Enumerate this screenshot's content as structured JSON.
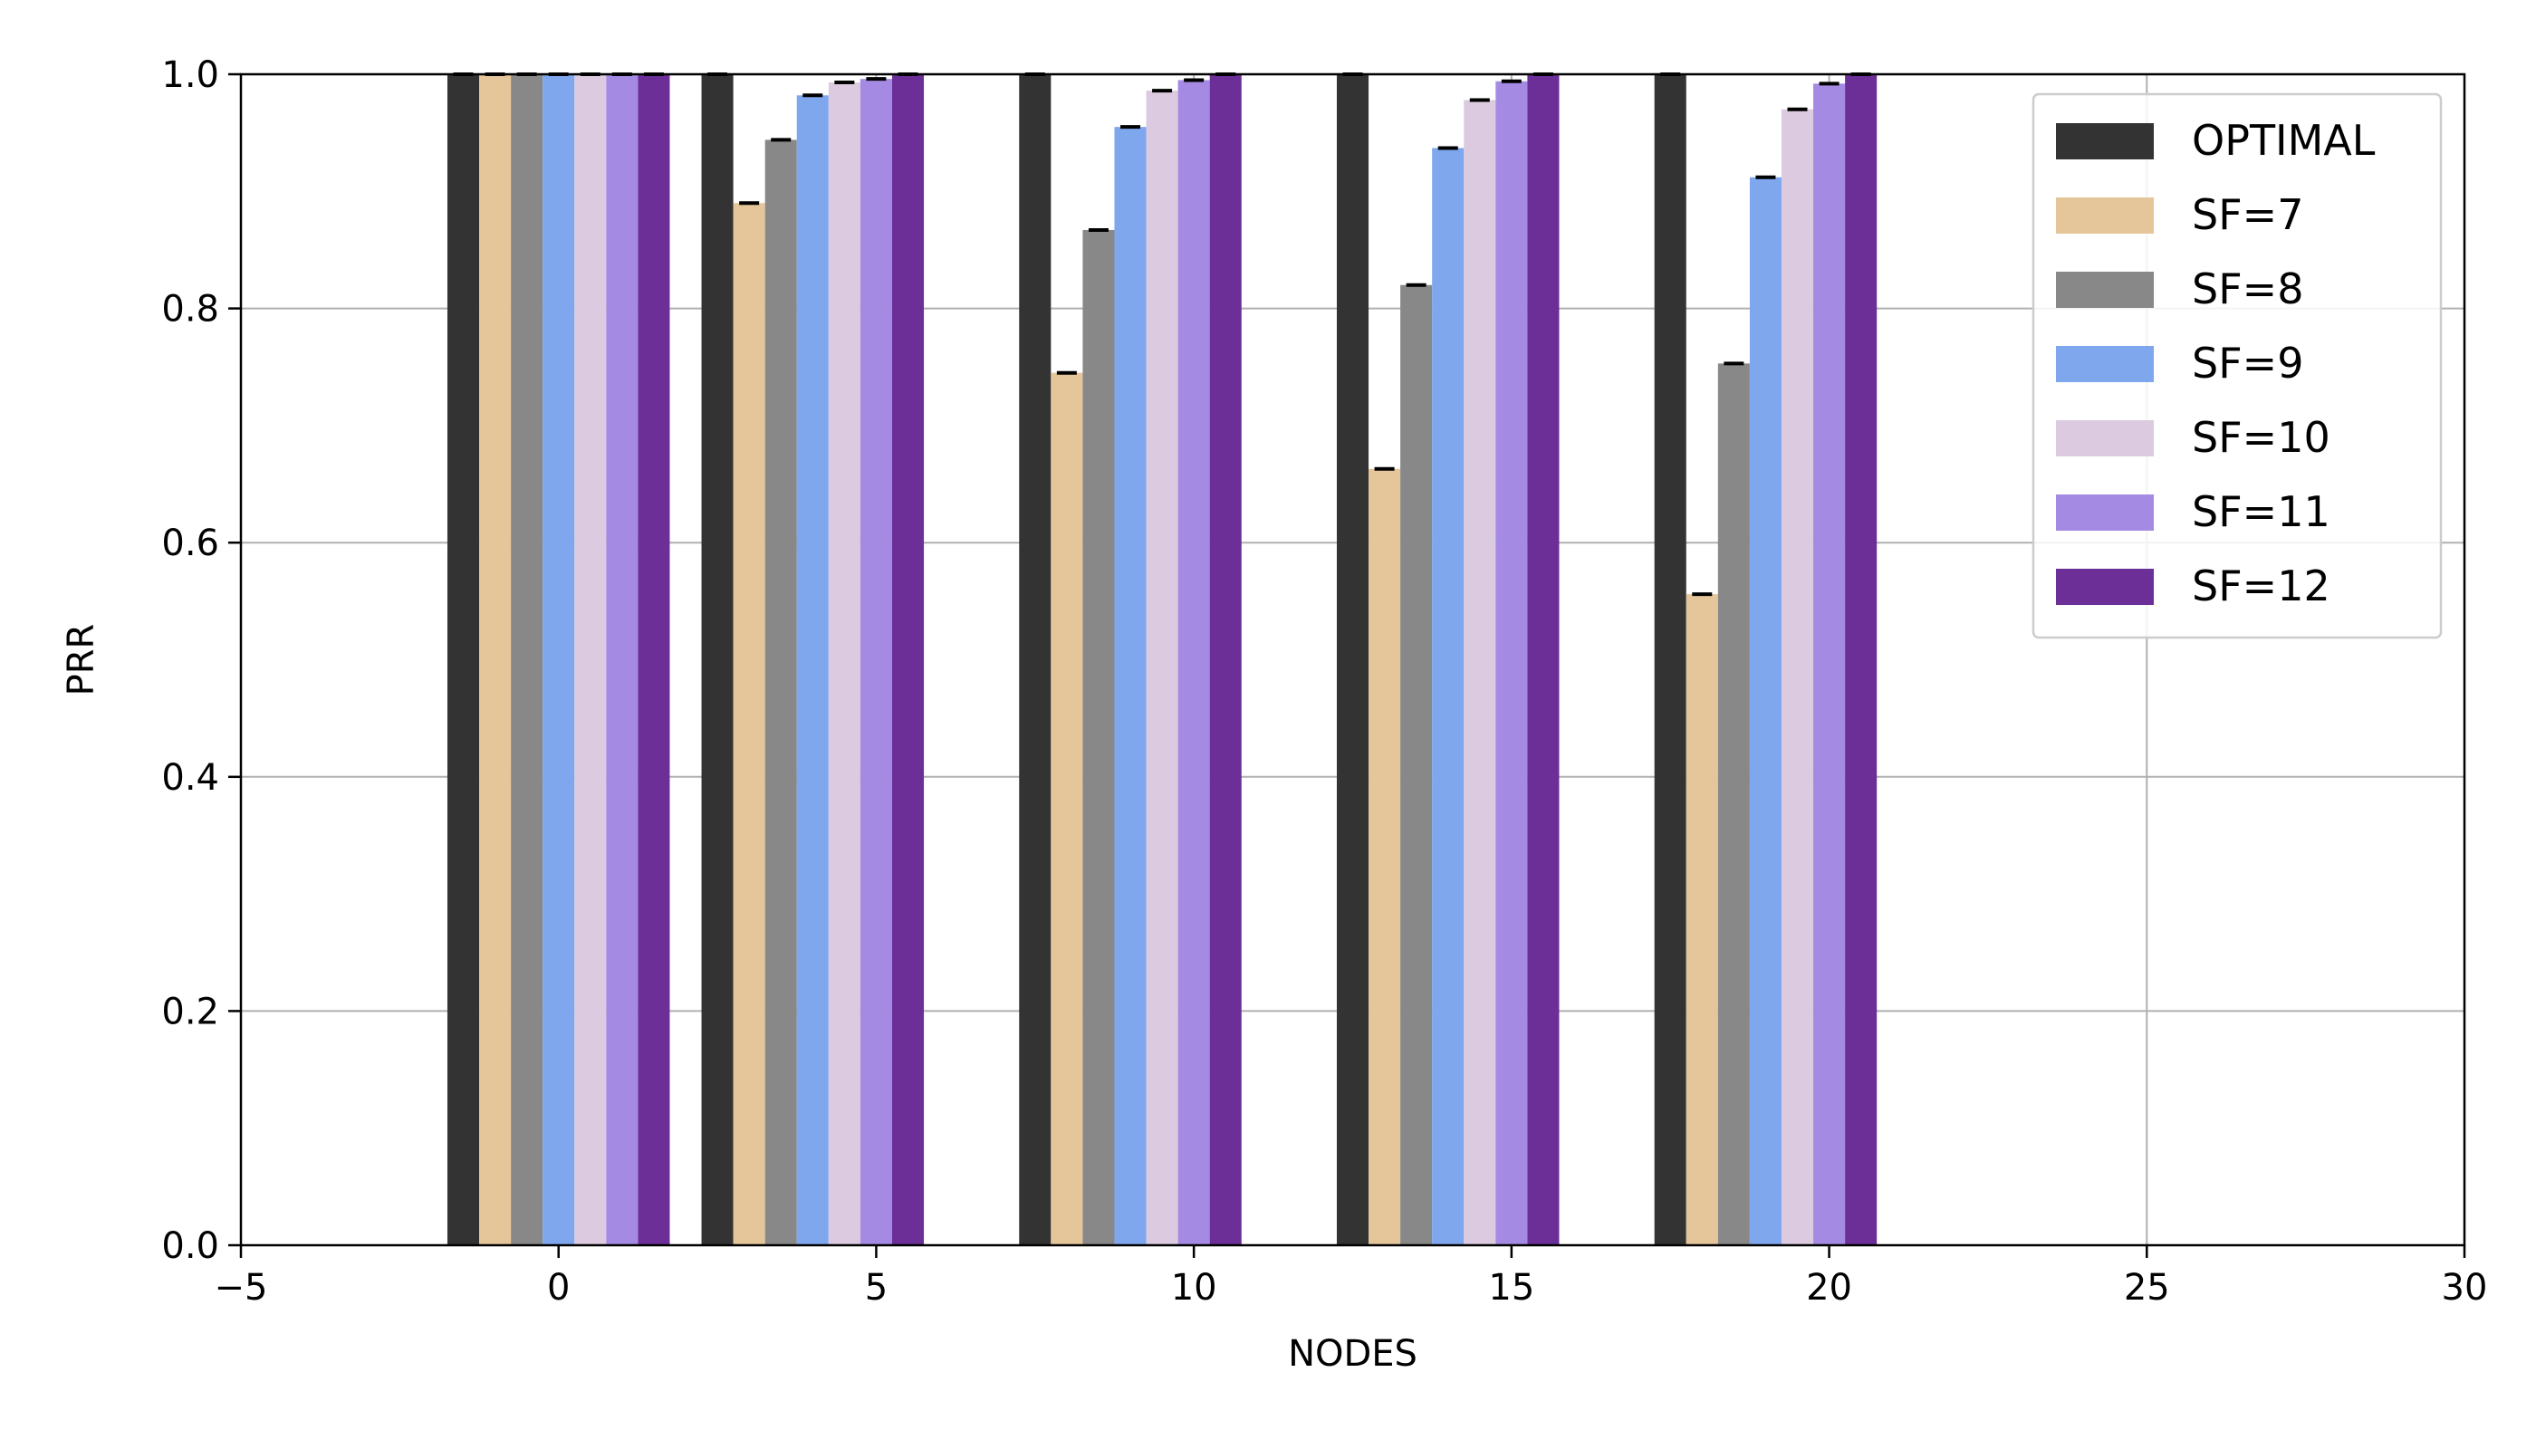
{
  "chart_data": {
    "type": "bar",
    "title": "",
    "xlabel": "NODES",
    "ylabel": "PRR",
    "xlim": [
      -5,
      30
    ],
    "ylim": [
      0.0,
      1.0
    ],
    "x_ticks": [
      "−5",
      "0",
      "5",
      "10",
      "15",
      "20",
      "25",
      "30"
    ],
    "x_tick_values": [
      -5,
      0,
      5,
      10,
      15,
      20,
      25,
      30
    ],
    "y_ticks": [
      "0.0",
      "0.2",
      "0.4",
      "0.6",
      "0.8",
      "1.0"
    ],
    "y_tick_values": [
      0.0,
      0.2,
      0.4,
      0.6,
      0.8,
      1.0
    ],
    "grid": true,
    "legend_position": "top-right",
    "x": [
      0,
      4,
      9,
      14,
      19
    ],
    "series": [
      {
        "name": "OPTIMAL",
        "color": "#333333",
        "values": [
          1.0,
          1.0,
          1.0,
          1.0,
          1.0
        ]
      },
      {
        "name": "SF=7",
        "color": "#e5c69b",
        "values": [
          1.0,
          0.89,
          0.745,
          0.663,
          0.556
        ]
      },
      {
        "name": "SF=8",
        "color": "#888888",
        "values": [
          1.0,
          0.944,
          0.867,
          0.82,
          0.753
        ]
      },
      {
        "name": "SF=9",
        "color": "#7ea7ee",
        "values": [
          1.0,
          0.982,
          0.955,
          0.937,
          0.912
        ]
      },
      {
        "name": "SF=10",
        "color": "#dccbe0",
        "values": [
          1.0,
          0.993,
          0.986,
          0.978,
          0.97
        ]
      },
      {
        "name": "SF=11",
        "color": "#a48ae2",
        "values": [
          1.0,
          0.996,
          0.995,
          0.994,
          0.992
        ]
      },
      {
        "name": "SF=12",
        "color": "#6c2f97",
        "values": [
          1.0,
          1.0,
          1.0,
          1.0,
          1.0
        ]
      }
    ]
  }
}
